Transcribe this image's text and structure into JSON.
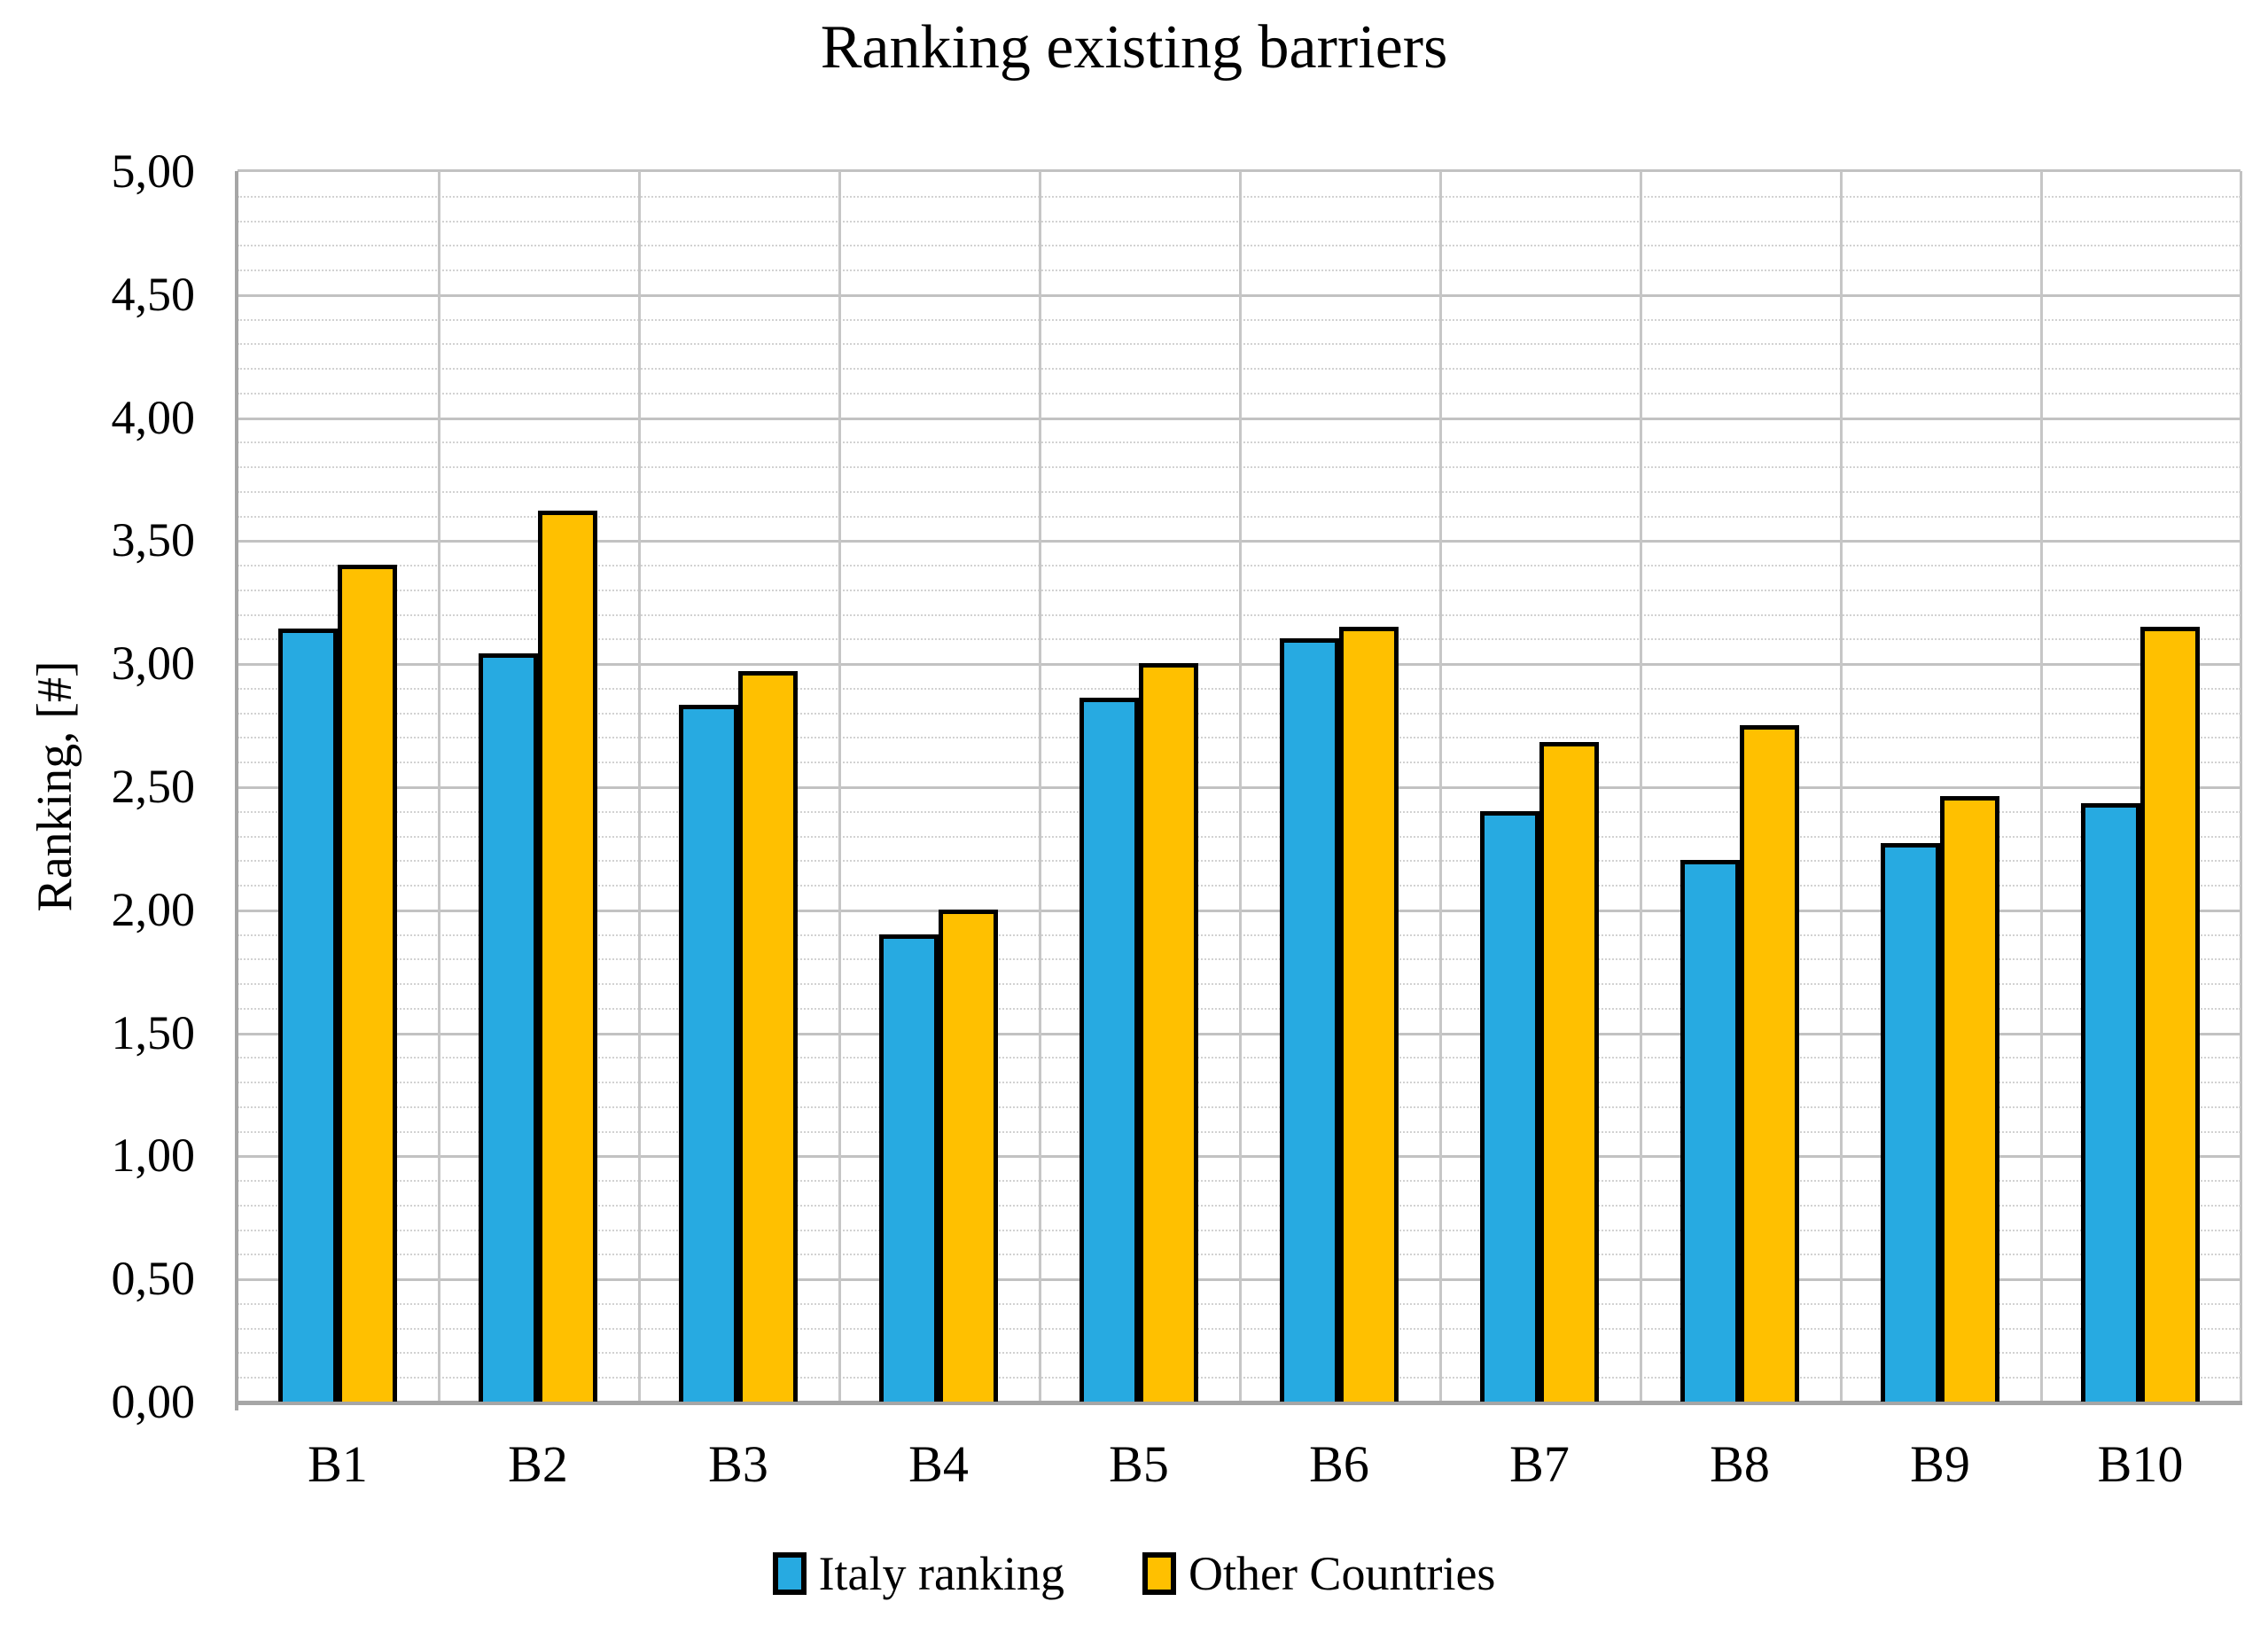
{
  "chart_data": {
    "type": "bar",
    "title": "Ranking existing barriers",
    "xlabel": "",
    "ylabel": "Ranking, [#]",
    "categories": [
      "B1",
      "B2",
      "B3",
      "B4",
      "B5",
      "B6",
      "B7",
      "B8",
      "B9",
      "B10"
    ],
    "series": [
      {
        "name": "Italy ranking",
        "color": "#27AAE1",
        "values": [
          3.14,
          3.04,
          2.83,
          1.9,
          2.86,
          3.1,
          2.4,
          2.2,
          2.27,
          2.43
        ]
      },
      {
        "name": "Other Countries",
        "color": "#FFC000",
        "values": [
          3.4,
          3.62,
          2.97,
          2.0,
          3.0,
          3.15,
          2.68,
          2.75,
          2.46,
          3.15
        ]
      }
    ],
    "ylim": [
      0,
      5
    ],
    "y_major_step": 0.5,
    "y_minor_step": 0.1,
    "y_tick_labels": [
      "0,00",
      "0,50",
      "1,00",
      "1,50",
      "2,00",
      "2,50",
      "3,00",
      "3,50",
      "4,00",
      "4,50",
      "5,00"
    ],
    "grid": true,
    "gridline_major_color": "#c2c2c2",
    "gridline_minor_color": "#d2d2d2",
    "axis_color": "#a6a6a6",
    "bar_outline_color": "#000000",
    "legend_position": "bottom"
  }
}
